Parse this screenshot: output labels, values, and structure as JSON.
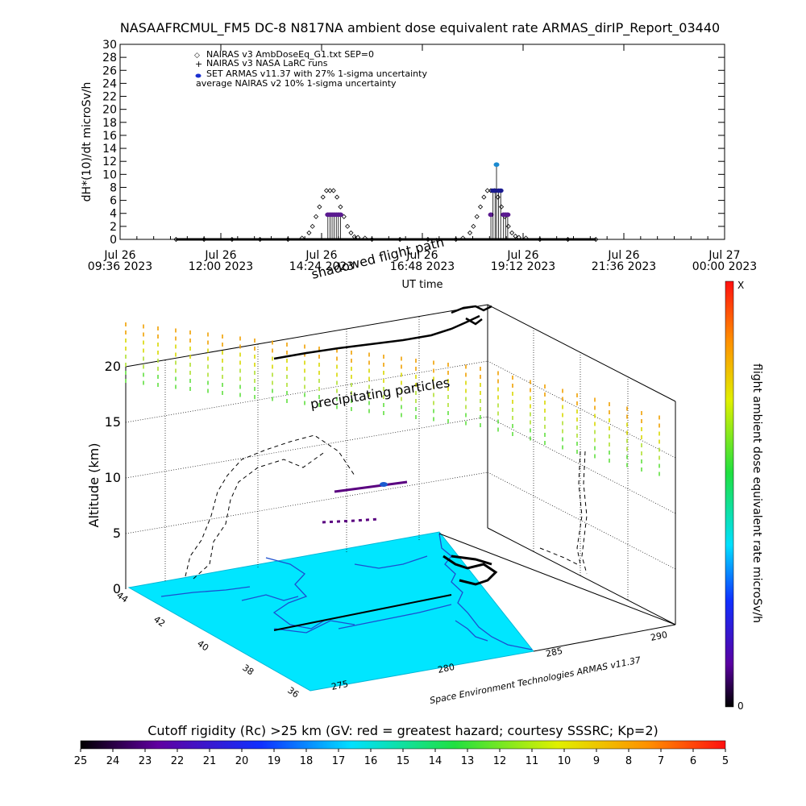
{
  "title": "NASAAFRCMUL_FM5 DC-8   N817NA ambient dose equivalent rate ARMAS_dirIP_Report_03440",
  "chart_data": [
    {
      "type": "scatter",
      "ylabel": "dH*(10)/dt microSv/h",
      "xlabel": "UT time",
      "ylim": [
        0,
        30
      ],
      "yticks": [
        0,
        2,
        4,
        6,
        8,
        10,
        12,
        14,
        16,
        18,
        20,
        22,
        24,
        26,
        28,
        30
      ],
      "xticks": [
        {
          "t": 0,
          "l1": "Jul 26",
          "l2": "09:36 2023"
        },
        {
          "t": 144,
          "l1": "Jul 26",
          "l2": "12:00 2023"
        },
        {
          "t": 288,
          "l1": "Jul 26",
          "l2": "14:24 2023"
        },
        {
          "t": 432,
          "l1": "Jul 26",
          "l2": "16:48 2023"
        },
        {
          "t": 576,
          "l1": "Jul 26",
          "l2": "19:12 2023"
        },
        {
          "t": 720,
          "l1": "Jul 26",
          "l2": "21:36 2023"
        },
        {
          "t": 864,
          "l1": "Jul 27",
          "l2": "00:00 2023"
        }
      ],
      "xlim_minutes": [
        0,
        864
      ],
      "legend": [
        {
          "symbol": "◇",
          "color": "#000000",
          "label": "NAIRAS v3 AmbDoseEq_G1.txt SEP=0"
        },
        {
          "symbol": "+",
          "color": "#000000",
          "label": "NAIRAS v3 NASA LaRC runs"
        },
        {
          "symbol": "●",
          "color": "#1a2fd0",
          "label": "SET ARMAS v11.37 with 27% 1-sigma uncertainty"
        },
        {
          "symbol": "",
          "color": "#000000",
          "label": "average NAIRAS v2 10% 1-sigma uncertainty"
        }
      ],
      "series": [
        {
          "kind": "nairas_v3",
          "x_minutes": [
            80,
            120,
            160,
            200,
            240,
            260,
            270,
            275,
            280,
            285,
            290,
            295,
            300,
            305,
            310,
            315,
            320,
            325,
            330,
            335,
            340,
            350,
            360,
            400,
            440,
            480,
            490,
            500,
            505,
            510,
            515,
            520,
            525,
            530,
            535,
            540,
            545,
            550,
            555,
            560,
            565,
            570,
            580,
            600,
            640,
            680
          ],
          "y": [
            0,
            0,
            0,
            0,
            0,
            0.2,
            1,
            2,
            3.5,
            5,
            6.5,
            7.5,
            7.5,
            7.5,
            6.5,
            5,
            3.5,
            2,
            1,
            0.4,
            0.3,
            0.2,
            0,
            0,
            0,
            0,
            0.2,
            1,
            2,
            3.5,
            5,
            6.5,
            7.5,
            7.5,
            7.5,
            6.5,
            5,
            3.5,
            2,
            1,
            0.5,
            0.3,
            0.2,
            0,
            0,
            0
          ]
        },
        {
          "kind": "armas",
          "x_minutes": [
            297,
            300,
            303,
            306,
            309,
            312,
            315,
            530,
            533,
            536,
            538,
            541,
            544,
            548,
            551,
            554
          ],
          "y": [
            3.8,
            3.8,
            3.8,
            3.8,
            3.8,
            3.8,
            3.8,
            3.8,
            7.5,
            7.5,
            11.5,
            7.5,
            7.5,
            3.8,
            3.8,
            3.8
          ]
        }
      ]
    },
    {
      "type": "3d-trajectory",
      "zlabel": "Altitude (km)",
      "zticks": [
        0,
        5,
        10,
        15,
        20
      ],
      "lat_ticks": [
        44,
        42,
        40,
        38,
        36
      ],
      "lon_ticks": [
        275,
        280,
        285,
        290
      ],
      "colorbar_right": {
        "label": "flight ambient dose equivalent rate microSv/h",
        "top": "X",
        "bottom": "0"
      },
      "annotations": [
        "shadowed flight path",
        "precipitating particles"
      ],
      "credit": "Space Environment Technologies ARMAS v11.37"
    },
    {
      "type": "colorbar",
      "title": "Cutoff rigidity (Rc) >25 km (GV: red = greatest hazard; courtesy SSSRC; Kp=2)",
      "ticks": [
        25,
        24,
        23,
        22,
        21,
        20,
        19,
        18,
        17,
        16,
        15,
        14,
        13,
        12,
        11,
        10,
        9,
        8,
        7,
        6,
        5
      ]
    }
  ]
}
